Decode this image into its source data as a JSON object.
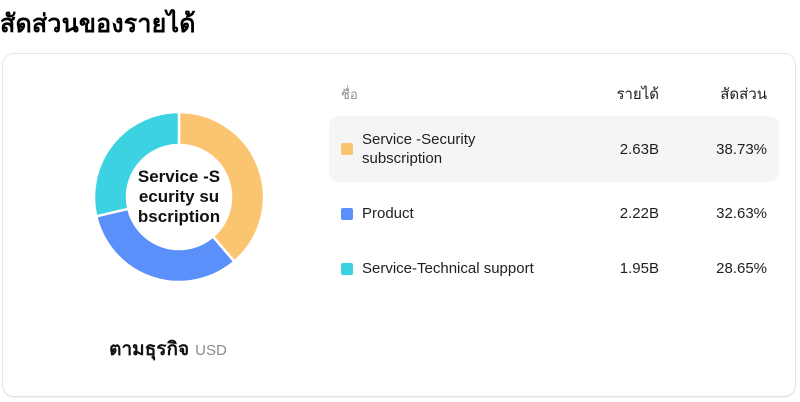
{
  "page": {
    "title": "สัดส่วนของรายได้"
  },
  "table": {
    "headers": {
      "name": "ชื่อ",
      "revenue": "รายได้",
      "share": "สัดส่วน"
    }
  },
  "chart": {
    "center_label_lines": [
      "Service -S",
      "ecurity su",
      "bscription"
    ],
    "footer_label": "ตามธุรกิจ",
    "footer_unit": "USD"
  },
  "chart_data": {
    "type": "pie",
    "title": "สัดส่วนของรายได้",
    "subtitle": "ตามธุรกิจ",
    "unit": "USD",
    "donut": {
      "outer_radius": 85,
      "inner_radius": 52,
      "start_angle_deg": 0,
      "direction": "clockwise",
      "gap_color": "#ffffff"
    },
    "legend_position": "right-table",
    "segments": [
      {
        "name": "Service -Security subscription",
        "revenue": "2.63B",
        "share_pct": 38.73,
        "color": "#FAC471",
        "highlighted": true
      },
      {
        "name": "Product",
        "revenue": "2.22B",
        "share_pct": 32.63,
        "color": "#5B8FF9",
        "highlighted": false
      },
      {
        "name": "Service-Technical support",
        "revenue": "1.95B",
        "share_pct": 28.65,
        "color": "#3DD2E1",
        "highlighted": false
      }
    ]
  }
}
